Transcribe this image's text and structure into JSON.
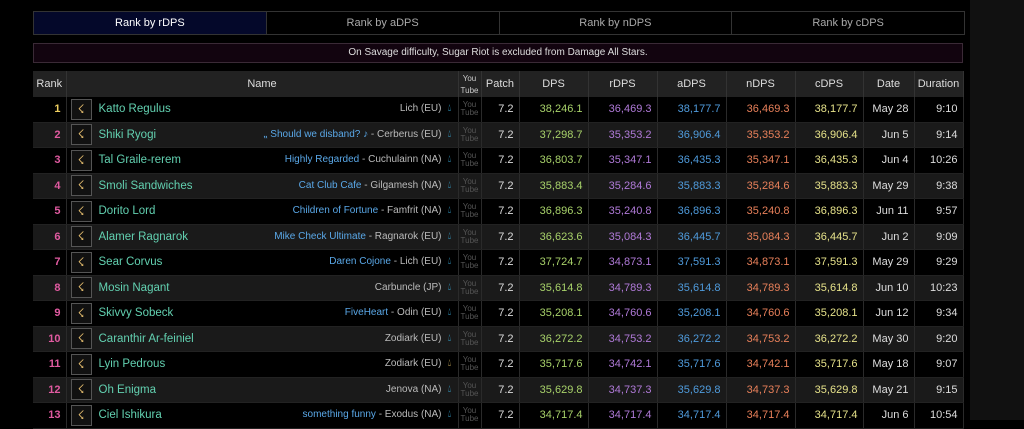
{
  "tabs": [
    "Rank by rDPS",
    "Rank by aDPS",
    "Rank by nDPS",
    "Rank by cDPS"
  ],
  "notice": "On Savage difficulty, Sugar Riot is excluded from Damage All Stars.",
  "headers": {
    "rank": "Rank",
    "name": "Name",
    "youtube": "You Tube",
    "patch": "Patch",
    "dps": "DPS",
    "rdps": "rDPS",
    "adps": "aDPS",
    "ndps": "nDPS",
    "cdps": "cDPS",
    "date": "Date",
    "duration": "Duration"
  },
  "colors": {
    "dps": "#a8d26a",
    "rdps": "#b07ad8",
    "adps": "#4f9bdc",
    "ndps": "#e8805a",
    "cdps": "#e6e28a",
    "active_tab": "#04082a"
  },
  "rows": [
    {
      "rank": "1",
      "name": "Katto Regulus",
      "fc": "",
      "server": "Lich (EU)",
      "patch": "7.2",
      "dps": "38,246.1",
      "rdps": "36,469.3",
      "adps": "38,177.7",
      "ndps": "36,469.3",
      "cdps": "38,177.7",
      "date": "May 28",
      "duration": "9:10"
    },
    {
      "rank": "2",
      "name": "Shiki Ryogi",
      "fc": "⹂ Should we disband? ♪",
      "server": " - Cerberus (EU)",
      "patch": "7.2",
      "dps": "37,298.7",
      "rdps": "35,353.2",
      "adps": "36,906.4",
      "ndps": "35,353.2",
      "cdps": "36,906.4",
      "date": "Jun 5",
      "duration": "9:14"
    },
    {
      "rank": "3",
      "name": "Tal Graile-rerem",
      "fc": "Highly Regarded",
      "server": " - Cuchulainn (NA)",
      "patch": "7.2",
      "dps": "36,803.7",
      "rdps": "35,347.1",
      "adps": "36,435.3",
      "ndps": "35,347.1",
      "cdps": "36,435.3",
      "date": "Jun 4",
      "duration": "10:26"
    },
    {
      "rank": "4",
      "name": "Smoli Sandwiches",
      "fc": "Cat Club Cafe",
      "server": " - Gilgamesh (NA)",
      "patch": "7.2",
      "dps": "35,883.4",
      "rdps": "35,284.6",
      "adps": "35,883.3",
      "ndps": "35,284.6",
      "cdps": "35,883.3",
      "date": "May 29",
      "duration": "9:38"
    },
    {
      "rank": "5",
      "name": "Dorito Lord",
      "fc": "Children of Fortune",
      "server": " - Famfrit (NA)",
      "patch": "7.2",
      "dps": "36,896.3",
      "rdps": "35,240.8",
      "adps": "36,896.3",
      "ndps": "35,240.8",
      "cdps": "36,896.3",
      "date": "Jun 11",
      "duration": "9:57"
    },
    {
      "rank": "6",
      "name": "Alamer Ragnarok",
      "fc": "Mike Check Ultimate",
      "server": " - Ragnarok (EU)",
      "patch": "7.2",
      "dps": "36,623.6",
      "rdps": "35,084.3",
      "adps": "36,445.7",
      "ndps": "35,084.3",
      "cdps": "36,445.7",
      "date": "Jun 2",
      "duration": "9:09"
    },
    {
      "rank": "7",
      "name": "Sear Corvus",
      "fc": "Daren Cojone",
      "server": " - Lich (EU)",
      "patch": "7.2",
      "dps": "37,724.7",
      "rdps": "34,873.1",
      "adps": "37,591.3",
      "ndps": "34,873.1",
      "cdps": "37,591.3",
      "date": "May 29",
      "duration": "9:29"
    },
    {
      "rank": "8",
      "name": "Mosin Nagant",
      "fc": "",
      "server": "Carbuncle (JP)",
      "patch": "7.2",
      "dps": "35,614.8",
      "rdps": "34,789.3",
      "adps": "35,614.8",
      "ndps": "34,789.3",
      "cdps": "35,614.8",
      "date": "Jun 10",
      "duration": "10:23"
    },
    {
      "rank": "9",
      "name": "Skivvy Sobeck",
      "fc": "FiveHeart",
      "server": " - Odin (EU)",
      "patch": "7.2",
      "dps": "35,208.1",
      "rdps": "34,760.6",
      "adps": "35,208.1",
      "ndps": "34,760.6",
      "cdps": "35,208.1",
      "date": "Jun 12",
      "duration": "9:34"
    },
    {
      "rank": "10",
      "name": "Caranthir Ar-feiniel",
      "fc": "",
      "server": "Zodiark (EU)",
      "patch": "7.2",
      "dps": "36,272.2",
      "rdps": "34,753.2",
      "adps": "36,272.2",
      "ndps": "34,753.2",
      "cdps": "36,272.2",
      "date": "May 30",
      "duration": "9:20"
    },
    {
      "rank": "11",
      "name": "Lyin Pedrous",
      "fc": "",
      "server": "Zodiark (EU)",
      "patch": "7.2",
      "dps": "35,717.6",
      "rdps": "34,742.1",
      "adps": "35,717.6",
      "ndps": "34,742.1",
      "cdps": "35,717.6",
      "date": "May 18",
      "duration": "9:07",
      "gold_drop": true
    },
    {
      "rank": "12",
      "name": "Oh Enigma",
      "fc": "",
      "server": "Jenova (NA)",
      "patch": "7.2",
      "dps": "35,629.8",
      "rdps": "34,737.3",
      "adps": "35,629.8",
      "ndps": "34,737.3",
      "cdps": "35,629.8",
      "date": "May 21",
      "duration": "9:15"
    },
    {
      "rank": "13",
      "name": "Ciel Ishikura",
      "fc": "something funny",
      "server": " - Exodus (NA)",
      "patch": "7.2",
      "dps": "34,717.4",
      "rdps": "34,717.4",
      "adps": "34,717.4",
      "ndps": "34,717.4",
      "cdps": "34,717.4",
      "date": "Jun 6",
      "duration": "10:54"
    }
  ]
}
